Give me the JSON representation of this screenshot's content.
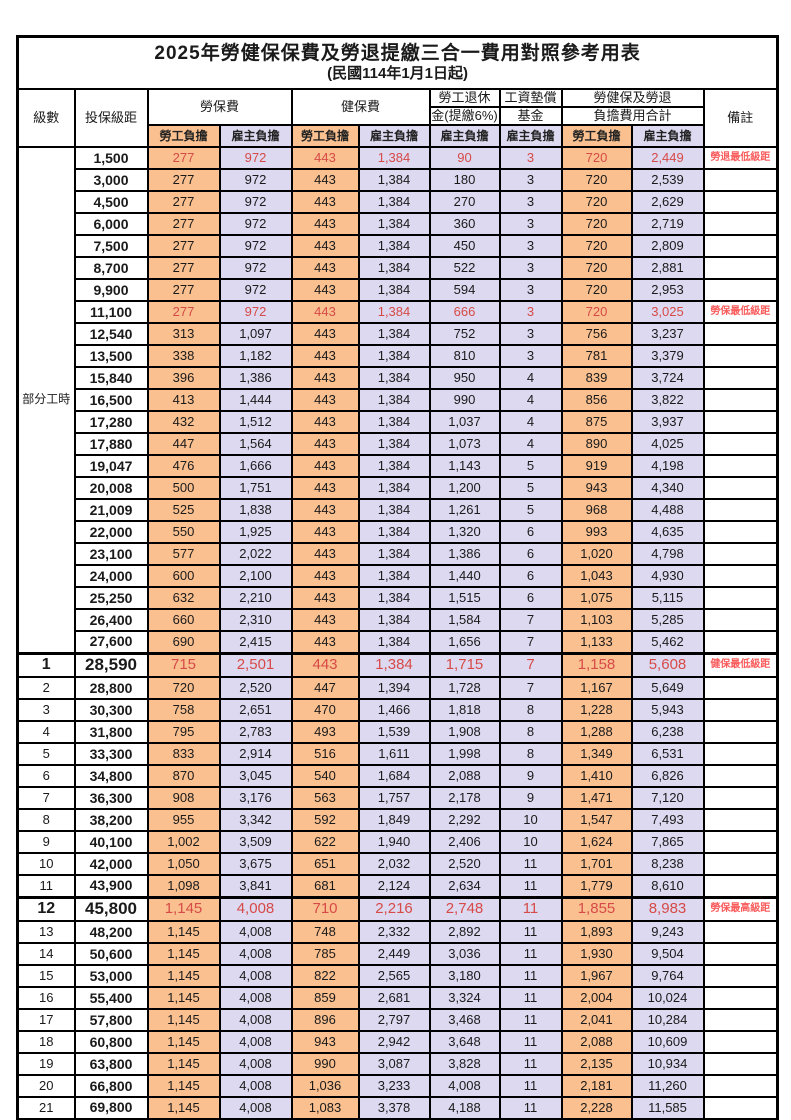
{
  "title": "2025年勞健保保費及勞退提繳三合一費用對照參考用表",
  "subtitle": "(民國114年1月1日起)",
  "header": {
    "level": "級數",
    "bracket": "投保級距",
    "labor_insurance": "勞保費",
    "health_insurance": "健保費",
    "pension_line1": "勞工退休",
    "pension_line2": "金(提繳6%)",
    "wage_fund_line1": "工資墊償",
    "wage_fund_line2": "基金",
    "total_line1": "勞健保及勞退",
    "total_line2": "負擔費用合計",
    "remark": "備註",
    "employee": "勞工負擔",
    "employer": "雇主負擔"
  },
  "part_time_label": "部分工時",
  "part_time_rowspan": 23,
  "colors": {
    "employee_bg": "#FAC090",
    "employer_bg": "#DDD9F0",
    "highlight_value": "#D64A47",
    "remark_red": "#FA5C5C",
    "border": "#000000"
  },
  "value_columns": [
    "labor-employee",
    "labor-employer",
    "health-employee",
    "health-employer",
    "pension-employer",
    "wage-fund-employer",
    "total-employee",
    "total-employer"
  ],
  "value_column_shades": [
    "emp",
    "er",
    "emp",
    "er",
    "er",
    "er",
    "emp",
    "er"
  ],
  "rows": [
    {
      "level": null,
      "bracket": "1,500",
      "v": [
        "277",
        "972",
        "443",
        "1,384",
        "90",
        "3",
        "720",
        "2,449"
      ],
      "note": "勞退最低級距",
      "red": true,
      "big": false,
      "thick_top": false
    },
    {
      "level": null,
      "bracket": "3,000",
      "v": [
        "277",
        "972",
        "443",
        "1,384",
        "180",
        "3",
        "720",
        "2,539"
      ],
      "note": "",
      "red": false,
      "big": false,
      "thick_top": false
    },
    {
      "level": null,
      "bracket": "4,500",
      "v": [
        "277",
        "972",
        "443",
        "1,384",
        "270",
        "3",
        "720",
        "2,629"
      ],
      "note": "",
      "red": false,
      "big": false,
      "thick_top": false
    },
    {
      "level": null,
      "bracket": "6,000",
      "v": [
        "277",
        "972",
        "443",
        "1,384",
        "360",
        "3",
        "720",
        "2,719"
      ],
      "note": "",
      "red": false,
      "big": false,
      "thick_top": false
    },
    {
      "level": null,
      "bracket": "7,500",
      "v": [
        "277",
        "972",
        "443",
        "1,384",
        "450",
        "3",
        "720",
        "2,809"
      ],
      "note": "",
      "red": false,
      "big": false,
      "thick_top": false
    },
    {
      "level": null,
      "bracket": "8,700",
      "v": [
        "277",
        "972",
        "443",
        "1,384",
        "522",
        "3",
        "720",
        "2,881"
      ],
      "note": "",
      "red": false,
      "big": false,
      "thick_top": false
    },
    {
      "level": null,
      "bracket": "9,900",
      "v": [
        "277",
        "972",
        "443",
        "1,384",
        "594",
        "3",
        "720",
        "2,953"
      ],
      "note": "",
      "red": false,
      "big": false,
      "thick_top": false
    },
    {
      "level": null,
      "bracket": "11,100",
      "v": [
        "277",
        "972",
        "443",
        "1,384",
        "666",
        "3",
        "720",
        "3,025"
      ],
      "note": "勞保最低級距",
      "red": true,
      "big": false,
      "thick_top": false
    },
    {
      "level": null,
      "bracket": "12,540",
      "v": [
        "313",
        "1,097",
        "443",
        "1,384",
        "752",
        "3",
        "756",
        "3,237"
      ],
      "note": "",
      "red": false,
      "big": false,
      "thick_top": false
    },
    {
      "level": null,
      "bracket": "13,500",
      "v": [
        "338",
        "1,182",
        "443",
        "1,384",
        "810",
        "3",
        "781",
        "3,379"
      ],
      "note": "",
      "red": false,
      "big": false,
      "thick_top": false
    },
    {
      "level": null,
      "bracket": "15,840",
      "v": [
        "396",
        "1,386",
        "443",
        "1,384",
        "950",
        "4",
        "839",
        "3,724"
      ],
      "note": "",
      "red": false,
      "big": false,
      "thick_top": false
    },
    {
      "level": null,
      "bracket": "16,500",
      "v": [
        "413",
        "1,444",
        "443",
        "1,384",
        "990",
        "4",
        "856",
        "3,822"
      ],
      "note": "",
      "red": false,
      "big": false,
      "thick_top": false
    },
    {
      "level": null,
      "bracket": "17,280",
      "v": [
        "432",
        "1,512",
        "443",
        "1,384",
        "1,037",
        "4",
        "875",
        "3,937"
      ],
      "note": "",
      "red": false,
      "big": false,
      "thick_top": false
    },
    {
      "level": null,
      "bracket": "17,880",
      "v": [
        "447",
        "1,564",
        "443",
        "1,384",
        "1,073",
        "4",
        "890",
        "4,025"
      ],
      "note": "",
      "red": false,
      "big": false,
      "thick_top": false
    },
    {
      "level": null,
      "bracket": "19,047",
      "v": [
        "476",
        "1,666",
        "443",
        "1,384",
        "1,143",
        "5",
        "919",
        "4,198"
      ],
      "note": "",
      "red": false,
      "big": false,
      "thick_top": false
    },
    {
      "level": null,
      "bracket": "20,008",
      "v": [
        "500",
        "1,751",
        "443",
        "1,384",
        "1,200",
        "5",
        "943",
        "4,340"
      ],
      "note": "",
      "red": false,
      "big": false,
      "thick_top": false
    },
    {
      "level": null,
      "bracket": "21,009",
      "v": [
        "525",
        "1,838",
        "443",
        "1,384",
        "1,261",
        "5",
        "968",
        "4,488"
      ],
      "note": "",
      "red": false,
      "big": false,
      "thick_top": false
    },
    {
      "level": null,
      "bracket": "22,000",
      "v": [
        "550",
        "1,925",
        "443",
        "1,384",
        "1,320",
        "6",
        "993",
        "4,635"
      ],
      "note": "",
      "red": false,
      "big": false,
      "thick_top": false
    },
    {
      "level": null,
      "bracket": "23,100",
      "v": [
        "577",
        "2,022",
        "443",
        "1,384",
        "1,386",
        "6",
        "1,020",
        "4,798"
      ],
      "note": "",
      "red": false,
      "big": false,
      "thick_top": false
    },
    {
      "level": null,
      "bracket": "24,000",
      "v": [
        "600",
        "2,100",
        "443",
        "1,384",
        "1,440",
        "6",
        "1,043",
        "4,930"
      ],
      "note": "",
      "red": false,
      "big": false,
      "thick_top": false
    },
    {
      "level": null,
      "bracket": "25,250",
      "v": [
        "632",
        "2,210",
        "443",
        "1,384",
        "1,515",
        "6",
        "1,075",
        "5,115"
      ],
      "note": "",
      "red": false,
      "big": false,
      "thick_top": false
    },
    {
      "level": null,
      "bracket": "26,400",
      "v": [
        "660",
        "2,310",
        "443",
        "1,384",
        "1,584",
        "7",
        "1,103",
        "5,285"
      ],
      "note": "",
      "red": false,
      "big": false,
      "thick_top": false
    },
    {
      "level": null,
      "bracket": "27,600",
      "v": [
        "690",
        "2,415",
        "443",
        "1,384",
        "1,656",
        "7",
        "1,133",
        "5,462"
      ],
      "note": "",
      "red": false,
      "big": false,
      "thick_top": false
    },
    {
      "level": "1",
      "bracket": "28,590",
      "v": [
        "715",
        "2,501",
        "443",
        "1,384",
        "1,715",
        "7",
        "1,158",
        "5,608"
      ],
      "note": "健保最低級距",
      "red": true,
      "big": true,
      "thick_top": true
    },
    {
      "level": "2",
      "bracket": "28,800",
      "v": [
        "720",
        "2,520",
        "447",
        "1,394",
        "1,728",
        "7",
        "1,167",
        "5,649"
      ],
      "note": "",
      "red": false,
      "big": false,
      "thick_top": false
    },
    {
      "level": "3",
      "bracket": "30,300",
      "v": [
        "758",
        "2,651",
        "470",
        "1,466",
        "1,818",
        "8",
        "1,228",
        "5,943"
      ],
      "note": "",
      "red": false,
      "big": false,
      "thick_top": false
    },
    {
      "level": "4",
      "bracket": "31,800",
      "v": [
        "795",
        "2,783",
        "493",
        "1,539",
        "1,908",
        "8",
        "1,288",
        "6,238"
      ],
      "note": "",
      "red": false,
      "big": false,
      "thick_top": false
    },
    {
      "level": "5",
      "bracket": "33,300",
      "v": [
        "833",
        "2,914",
        "516",
        "1,611",
        "1,998",
        "8",
        "1,349",
        "6,531"
      ],
      "note": "",
      "red": false,
      "big": false,
      "thick_top": false
    },
    {
      "level": "6",
      "bracket": "34,800",
      "v": [
        "870",
        "3,045",
        "540",
        "1,684",
        "2,088",
        "9",
        "1,410",
        "6,826"
      ],
      "note": "",
      "red": false,
      "big": false,
      "thick_top": false
    },
    {
      "level": "7",
      "bracket": "36,300",
      "v": [
        "908",
        "3,176",
        "563",
        "1,757",
        "2,178",
        "9",
        "1,471",
        "7,120"
      ],
      "note": "",
      "red": false,
      "big": false,
      "thick_top": false
    },
    {
      "level": "8",
      "bracket": "38,200",
      "v": [
        "955",
        "3,342",
        "592",
        "1,849",
        "2,292",
        "10",
        "1,547",
        "7,493"
      ],
      "note": "",
      "red": false,
      "big": false,
      "thick_top": false
    },
    {
      "level": "9",
      "bracket": "40,100",
      "v": [
        "1,002",
        "3,509",
        "622",
        "1,940",
        "2,406",
        "10",
        "1,624",
        "7,865"
      ],
      "note": "",
      "red": false,
      "big": false,
      "thick_top": false
    },
    {
      "level": "10",
      "bracket": "42,000",
      "v": [
        "1,050",
        "3,675",
        "651",
        "2,032",
        "2,520",
        "11",
        "1,701",
        "8,238"
      ],
      "note": "",
      "red": false,
      "big": false,
      "thick_top": false
    },
    {
      "level": "11",
      "bracket": "43,900",
      "v": [
        "1,098",
        "3,841",
        "681",
        "2,124",
        "2,634",
        "11",
        "1,779",
        "8,610"
      ],
      "note": "",
      "red": false,
      "big": false,
      "thick_top": false
    },
    {
      "level": "12",
      "bracket": "45,800",
      "v": [
        "1,145",
        "4,008",
        "710",
        "2,216",
        "2,748",
        "11",
        "1,855",
        "8,983"
      ],
      "note": "勞保最高級距",
      "red": true,
      "big": true,
      "thick_top": true
    },
    {
      "level": "13",
      "bracket": "48,200",
      "v": [
        "1,145",
        "4,008",
        "748",
        "2,332",
        "2,892",
        "11",
        "1,893",
        "9,243"
      ],
      "note": "",
      "red": false,
      "big": false,
      "thick_top": false
    },
    {
      "level": "14",
      "bracket": "50,600",
      "v": [
        "1,145",
        "4,008",
        "785",
        "2,449",
        "3,036",
        "11",
        "1,930",
        "9,504"
      ],
      "note": "",
      "red": false,
      "big": false,
      "thick_top": false
    },
    {
      "level": "15",
      "bracket": "53,000",
      "v": [
        "1,145",
        "4,008",
        "822",
        "2,565",
        "3,180",
        "11",
        "1,967",
        "9,764"
      ],
      "note": "",
      "red": false,
      "big": false,
      "thick_top": false
    },
    {
      "level": "16",
      "bracket": "55,400",
      "v": [
        "1,145",
        "4,008",
        "859",
        "2,681",
        "3,324",
        "11",
        "2,004",
        "10,024"
      ],
      "note": "",
      "red": false,
      "big": false,
      "thick_top": false
    },
    {
      "level": "17",
      "bracket": "57,800",
      "v": [
        "1,145",
        "4,008",
        "896",
        "2,797",
        "3,468",
        "11",
        "2,041",
        "10,284"
      ],
      "note": "",
      "red": false,
      "big": false,
      "thick_top": false
    },
    {
      "level": "18",
      "bracket": "60,800",
      "v": [
        "1,145",
        "4,008",
        "943",
        "2,942",
        "3,648",
        "11",
        "2,088",
        "10,609"
      ],
      "note": "",
      "red": false,
      "big": false,
      "thick_top": false
    },
    {
      "level": "19",
      "bracket": "63,800",
      "v": [
        "1,145",
        "4,008",
        "990",
        "3,087",
        "3,828",
        "11",
        "2,135",
        "10,934"
      ],
      "note": "",
      "red": false,
      "big": false,
      "thick_top": false
    },
    {
      "level": "20",
      "bracket": "66,800",
      "v": [
        "1,145",
        "4,008",
        "1,036",
        "3,233",
        "4,008",
        "11",
        "2,181",
        "11,260"
      ],
      "note": "",
      "red": false,
      "big": false,
      "thick_top": false
    },
    {
      "level": "21",
      "bracket": "69,800",
      "v": [
        "1,145",
        "4,008",
        "1,083",
        "3,378",
        "4,188",
        "11",
        "2,228",
        "11,585"
      ],
      "note": "",
      "red": false,
      "big": false,
      "thick_top": false
    }
  ]
}
